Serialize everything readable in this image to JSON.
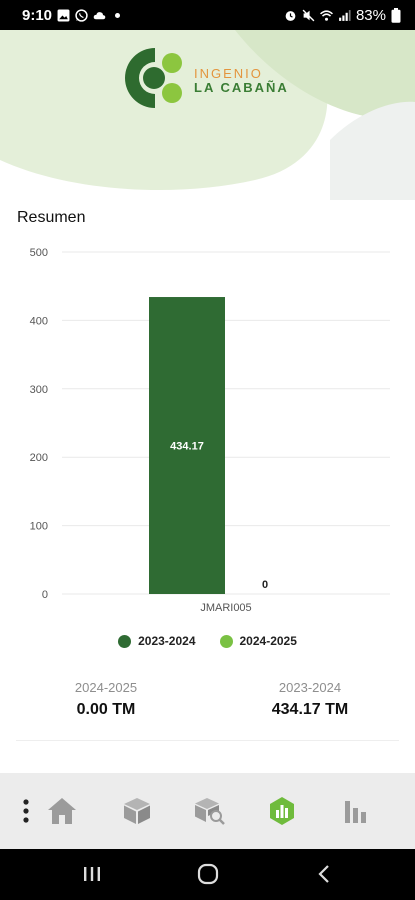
{
  "status_bar": {
    "time": "9:10",
    "battery": "83%",
    "icons_left": [
      "gallery-icon",
      "whatsapp-icon",
      "cloud-icon",
      "dot-icon"
    ],
    "icons_right": [
      "alarm-icon",
      "mute-icon",
      "wifi-icon",
      "signal-icon",
      "battery-icon"
    ]
  },
  "brand": {
    "line1": "INGENIO",
    "line2": "LA CABAÑA",
    "colors": {
      "dark_green": "#2e6b2f",
      "light_green": "#8cc63f",
      "orange": "#e3953e"
    }
  },
  "section_title": "Resumen",
  "chart_data": {
    "type": "bar",
    "categories": [
      "JMARI005"
    ],
    "series": [
      {
        "name": "2023-2024",
        "values": [
          434.17
        ],
        "color": "#2f6b33"
      },
      {
        "name": "2024-2025",
        "values": [
          0
        ],
        "color": "#7ac143"
      }
    ],
    "data_labels": [
      "434.17",
      "0"
    ],
    "y_ticks": [
      "0",
      "100",
      "200",
      "300",
      "400",
      "500"
    ],
    "ylim": [
      0,
      500
    ],
    "grid": true,
    "legend_position": "bottom"
  },
  "legend": [
    {
      "label": "2023-2024",
      "color": "#2f6b33"
    },
    {
      "label": "2024-2025",
      "color": "#7ac143"
    }
  ],
  "totals": [
    {
      "period": "2024-2025",
      "value": "0.00 TM"
    },
    {
      "period": "2023-2024",
      "value": "434.17 TM"
    }
  ],
  "bottom_nav": {
    "active_color": "#6fbb3c",
    "inactive_color": "#9b9b9b",
    "items": [
      {
        "icon": "more-vertical-icon",
        "active": false
      },
      {
        "icon": "home-icon",
        "active": false
      },
      {
        "icon": "box-icon",
        "active": false
      },
      {
        "icon": "box-search-icon",
        "active": false
      },
      {
        "icon": "report-chart-icon",
        "active": true
      },
      {
        "icon": "bar-chart-icon",
        "active": false
      }
    ]
  },
  "system_nav": [
    "recents-icon",
    "home-circle-icon",
    "back-icon"
  ]
}
